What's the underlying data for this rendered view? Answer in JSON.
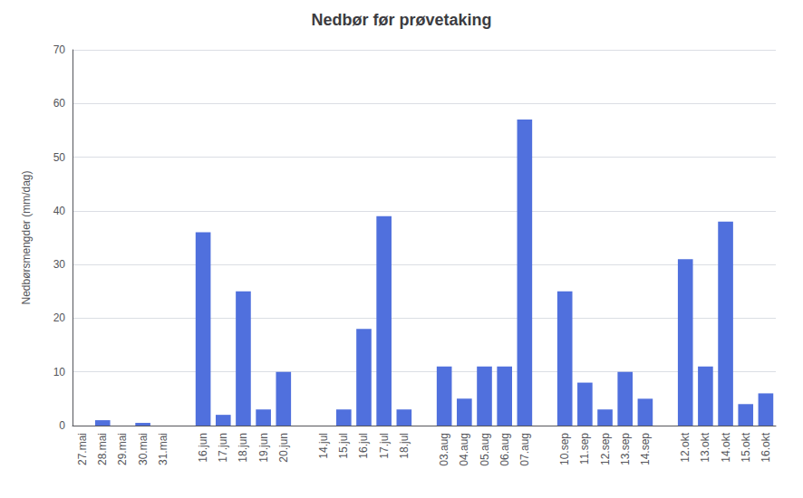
{
  "chart_data": {
    "type": "bar",
    "title": "Nedbør før prøvetaking",
    "ylabel": "Nedbørsmengder (mm/dag)",
    "categories": [
      "27.mai",
      "28.mai",
      "29.mai",
      "30.mai",
      "31.mai",
      null,
      "16.jun",
      "17.jun",
      "18.jun",
      "19.jun",
      "20.jun",
      null,
      "14.jul",
      "15.jul",
      "16.jul",
      "17.jul",
      "18.jul",
      null,
      "03.aug",
      "04.aug",
      "05.aug",
      "06.aug",
      "07.aug",
      null,
      "10.sep",
      "11.sep",
      "12.sep",
      "13.sep",
      "14.sep",
      null,
      "12.okt",
      "13.okt",
      "14.okt",
      "15.okt",
      "16.okt"
    ],
    "values": [
      0,
      1,
      0,
      0.5,
      0,
      null,
      36,
      2,
      25,
      3,
      10,
      null,
      0,
      3,
      18,
      39,
      3,
      null,
      11,
      5,
      11,
      11,
      57,
      null,
      25,
      8,
      3,
      10,
      5,
      null,
      31,
      11,
      38,
      4,
      6
    ],
    "ylim": [
      0,
      70
    ],
    "yticks": [
      0,
      10,
      20,
      30,
      40,
      50,
      60,
      70
    ],
    "grid": true
  }
}
